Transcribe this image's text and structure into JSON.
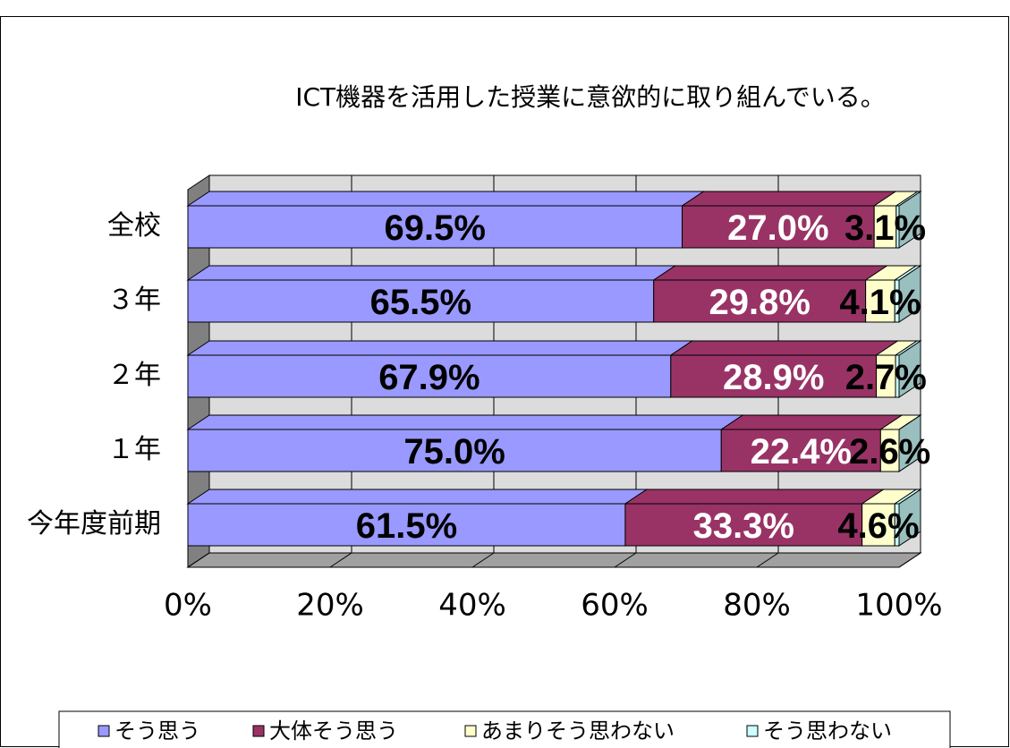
{
  "chart_data": {
    "type": "bar3d_stacked_horizontal",
    "title": "ICT機器を活用した授業に意欲的に取り組んでいる。",
    "categories": [
      "全校",
      "３年",
      "２年",
      "１年",
      "今年度前期"
    ],
    "series": [
      {
        "name": "そう思う",
        "color": "#9999ff",
        "values": [
          69.5,
          65.5,
          67.9,
          75.0,
          61.5
        ],
        "value_labels": [
          "69.5%",
          "65.5%",
          "67.9%",
          "75.0%",
          "61.5%"
        ]
      },
      {
        "name": "大体そう思う",
        "color": "#993366",
        "values": [
          27.0,
          29.8,
          28.9,
          22.4,
          33.3
        ],
        "value_labels": [
          "27.0%",
          "29.8%",
          "28.9%",
          "22.4%",
          "33.3%"
        ]
      },
      {
        "name": "あまりそう思わない",
        "color": "#ffffcc",
        "values": [
          3.1,
          4.1,
          2.7,
          2.6,
          4.6
        ],
        "value_labels": [
          "3.1%",
          "4.1%",
          "2.7%",
          "2.6%",
          "4.6%"
        ]
      },
      {
        "name": "そう思わない",
        "color": "#ccffff",
        "values": [
          0.4,
          0.6,
          0.5,
          0.0,
          0.6
        ]
      }
    ],
    "xlim": [
      0,
      100
    ],
    "xticks": [
      {
        "value": 0,
        "label": "0%"
      },
      {
        "value": 20,
        "label": "20%"
      },
      {
        "value": 40,
        "label": "40%"
      },
      {
        "value": 60,
        "label": "60%"
      },
      {
        "value": 80,
        "label": "80%"
      },
      {
        "value": 100,
        "label": "100%"
      }
    ],
    "grid": true,
    "legend": "bottom"
  }
}
